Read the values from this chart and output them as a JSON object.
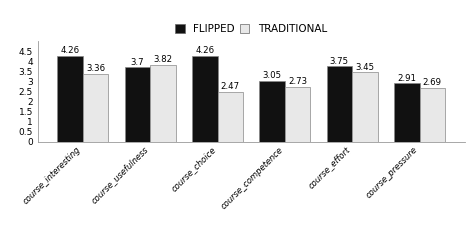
{
  "categories": [
    "course_interesting",
    "course_usefulness",
    "course_choice",
    "course_competence",
    "course_effort",
    "course_pressure"
  ],
  "flipped": [
    4.26,
    3.7,
    4.26,
    3.05,
    3.75,
    2.91
  ],
  "traditional": [
    3.36,
    3.82,
    2.47,
    2.73,
    3.45,
    2.69
  ],
  "flipped_color": "#111111",
  "traditional_color": "#e8e8e8",
  "bar_edge_color": "#888888",
  "ylim": [
    0,
    5.0
  ],
  "yticks": [
    0,
    0.5,
    1,
    1.5,
    2,
    2.5,
    3,
    3.5,
    4,
    4.5
  ],
  "ytick_labels": [
    "0",
    "0.5",
    "1",
    "1.5",
    "2",
    "2.5",
    "3",
    "3.5",
    "4",
    "4.5"
  ],
  "legend_flipped": "FLIPPED",
  "legend_traditional": "TRADITIONAL",
  "bar_width": 0.38,
  "label_fontsize": 6.0,
  "tick_fontsize": 6.5,
  "legend_fontsize": 7.5,
  "value_fontsize": 6.2,
  "background_color": "#ffffff"
}
